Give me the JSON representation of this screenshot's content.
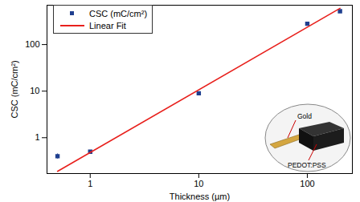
{
  "chart_data": {
    "type": "scatter",
    "x_label": "Thickness (µm)",
    "y_label": "CSC (mC/cm²)",
    "log": true,
    "legend": "top-left",
    "xlim": [
      0.4,
      260
    ],
    "ylim": [
      0.17,
      700
    ],
    "xticks": [
      1,
      10,
      100
    ],
    "yticks": [
      1,
      10,
      100
    ],
    "series": [
      {
        "name": "CSC (mC/cm²)",
        "type": "scatter",
        "color": "#1f3f8f",
        "marker": "square",
        "x": [
          0.5,
          1,
          10,
          100,
          200
        ],
        "values": [
          0.4,
          0.5,
          9,
          280,
          520
        ],
        "errors": [
          0.05,
          0.02,
          0.5,
          15,
          30
        ]
      },
      {
        "name": "Linear Fit",
        "type": "line",
        "color": "#e8201c",
        "line_style": "solid",
        "x": [
          0.5,
          200
        ],
        "values": [
          0.19,
          600
        ]
      }
    ],
    "annotations": [
      "Gold",
      "PEDOT:PSS"
    ]
  }
}
